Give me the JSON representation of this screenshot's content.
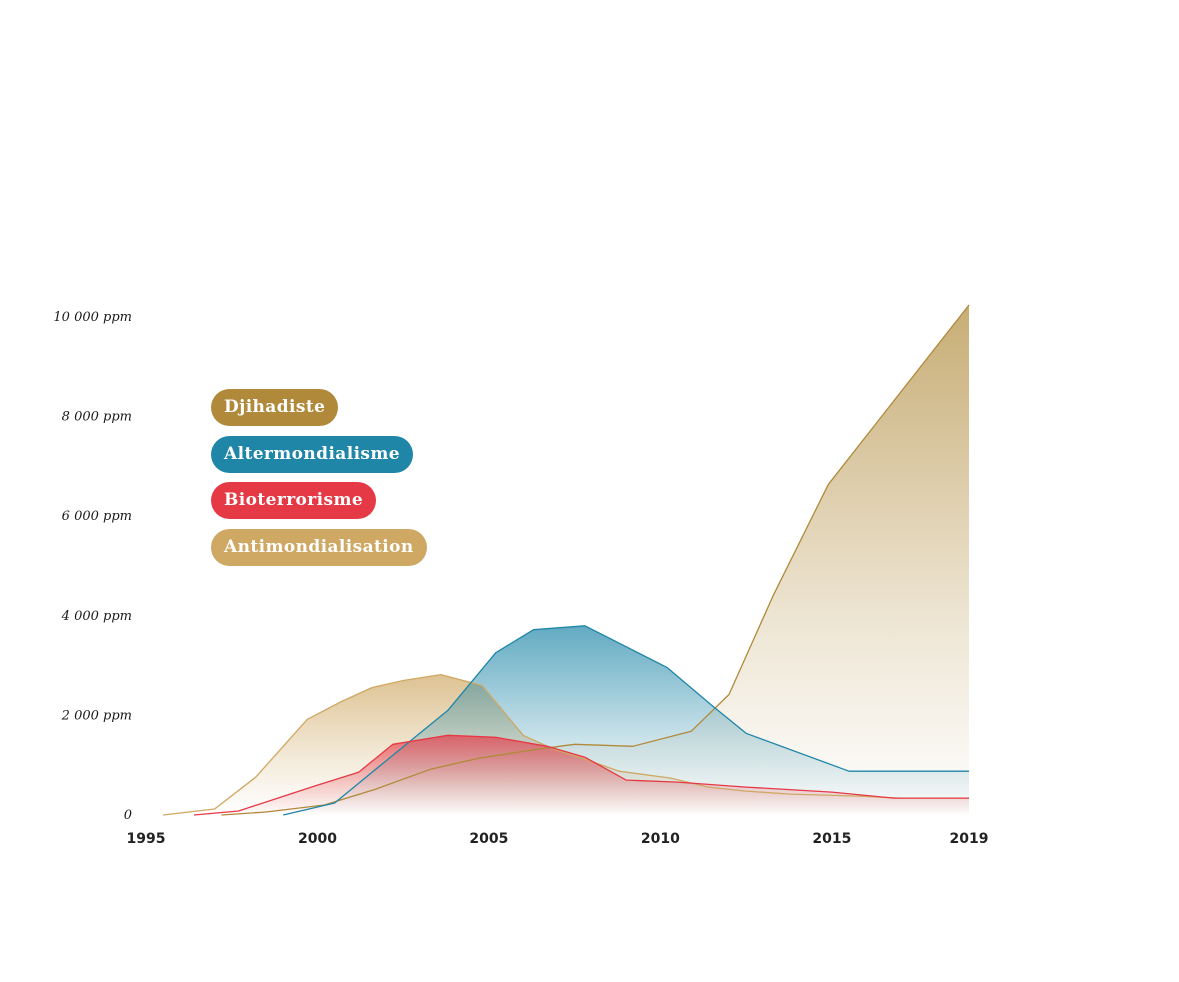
{
  "chart_data": {
    "type": "area",
    "title": "",
    "xlabel": "",
    "ylabel": "",
    "x_ticks": [
      "1995",
      "2000",
      "2005",
      "2010",
      "2015",
      "2019"
    ],
    "y_ticks": [
      {
        "value": 0,
        "label": "0"
      },
      {
        "value": 2000,
        "label": "2 000 ppm"
      },
      {
        "value": 4000,
        "label": "4 000 ppm"
      },
      {
        "value": 6000,
        "label": "6 000 ppm"
      },
      {
        "value": 8000,
        "label": "8 000 ppm"
      },
      {
        "value": 10000,
        "label": "10 000 ppm"
      }
    ],
    "xlim": [
      1995,
      2019
    ],
    "ylim": [
      0,
      10000
    ],
    "legend_position": "top-left",
    "series": [
      {
        "name": "Antimondialisation",
        "color": "#cfa863",
        "x": [
          1995.5,
          1997.0,
          1998.2,
          1999.7,
          2000.7,
          2001.6,
          2002.5,
          2003.6,
          2004.8,
          2006.0,
          2006.9,
          2007.8,
          2008.8,
          2010.3,
          2011.4,
          2012.5,
          2013.8,
          2015.8,
          2017.0,
          2019.0
        ],
        "y": [
          0,
          120,
          760,
          1920,
          2280,
          2560,
          2700,
          2820,
          2600,
          1600,
          1320,
          1120,
          880,
          740,
          560,
          480,
          420,
          380,
          340,
          340
        ]
      },
      {
        "name": "Djihadiste",
        "color": "#b08a3a",
        "x": [
          1997.2,
          1998.5,
          2000.2,
          2001.7,
          2003.3,
          2004.7,
          2006.4,
          2007.5,
          2009.2,
          2010.9,
          2012.0,
          2013.3,
          2014.9,
          2019.0
        ],
        "y": [
          0,
          60,
          200,
          520,
          920,
          1140,
          1320,
          1420,
          1380,
          1680,
          2420,
          4420,
          6640,
          10240
        ]
      },
      {
        "name": "Altermondialisme",
        "color": "#1f86a8",
        "x": [
          1999.0,
          2000.5,
          2002.2,
          2003.8,
          2005.2,
          2006.3,
          2007.8,
          2009.0,
          2010.2,
          2011.5,
          2012.5,
          2015.5,
          2019.0
        ],
        "y": [
          0,
          240,
          1200,
          2100,
          3260,
          3720,
          3800,
          3380,
          2960,
          2200,
          1640,
          880,
          880
        ]
      },
      {
        "name": "Bioterrorisme",
        "color": "#e63946",
        "x": [
          1996.4,
          1997.7,
          2000.0,
          2001.2,
          2002.2,
          2003.8,
          2005.2,
          2006.7,
          2007.8,
          2009.0,
          2010.5,
          2012.5,
          2015.0,
          2016.8,
          2019.0
        ],
        "y": [
          0,
          80,
          600,
          860,
          1420,
          1600,
          1560,
          1380,
          1160,
          700,
          660,
          560,
          460,
          340,
          340
        ]
      }
    ]
  },
  "legend": {
    "items": [
      {
        "label": "Djihadiste",
        "color": "#b08a3a"
      },
      {
        "label": "Altermondialisme",
        "color": "#1f86a8"
      },
      {
        "label": "Bioterrorisme",
        "color": "#e63946"
      },
      {
        "label": "Antimondialisation",
        "color": "#cfa863"
      }
    ]
  }
}
